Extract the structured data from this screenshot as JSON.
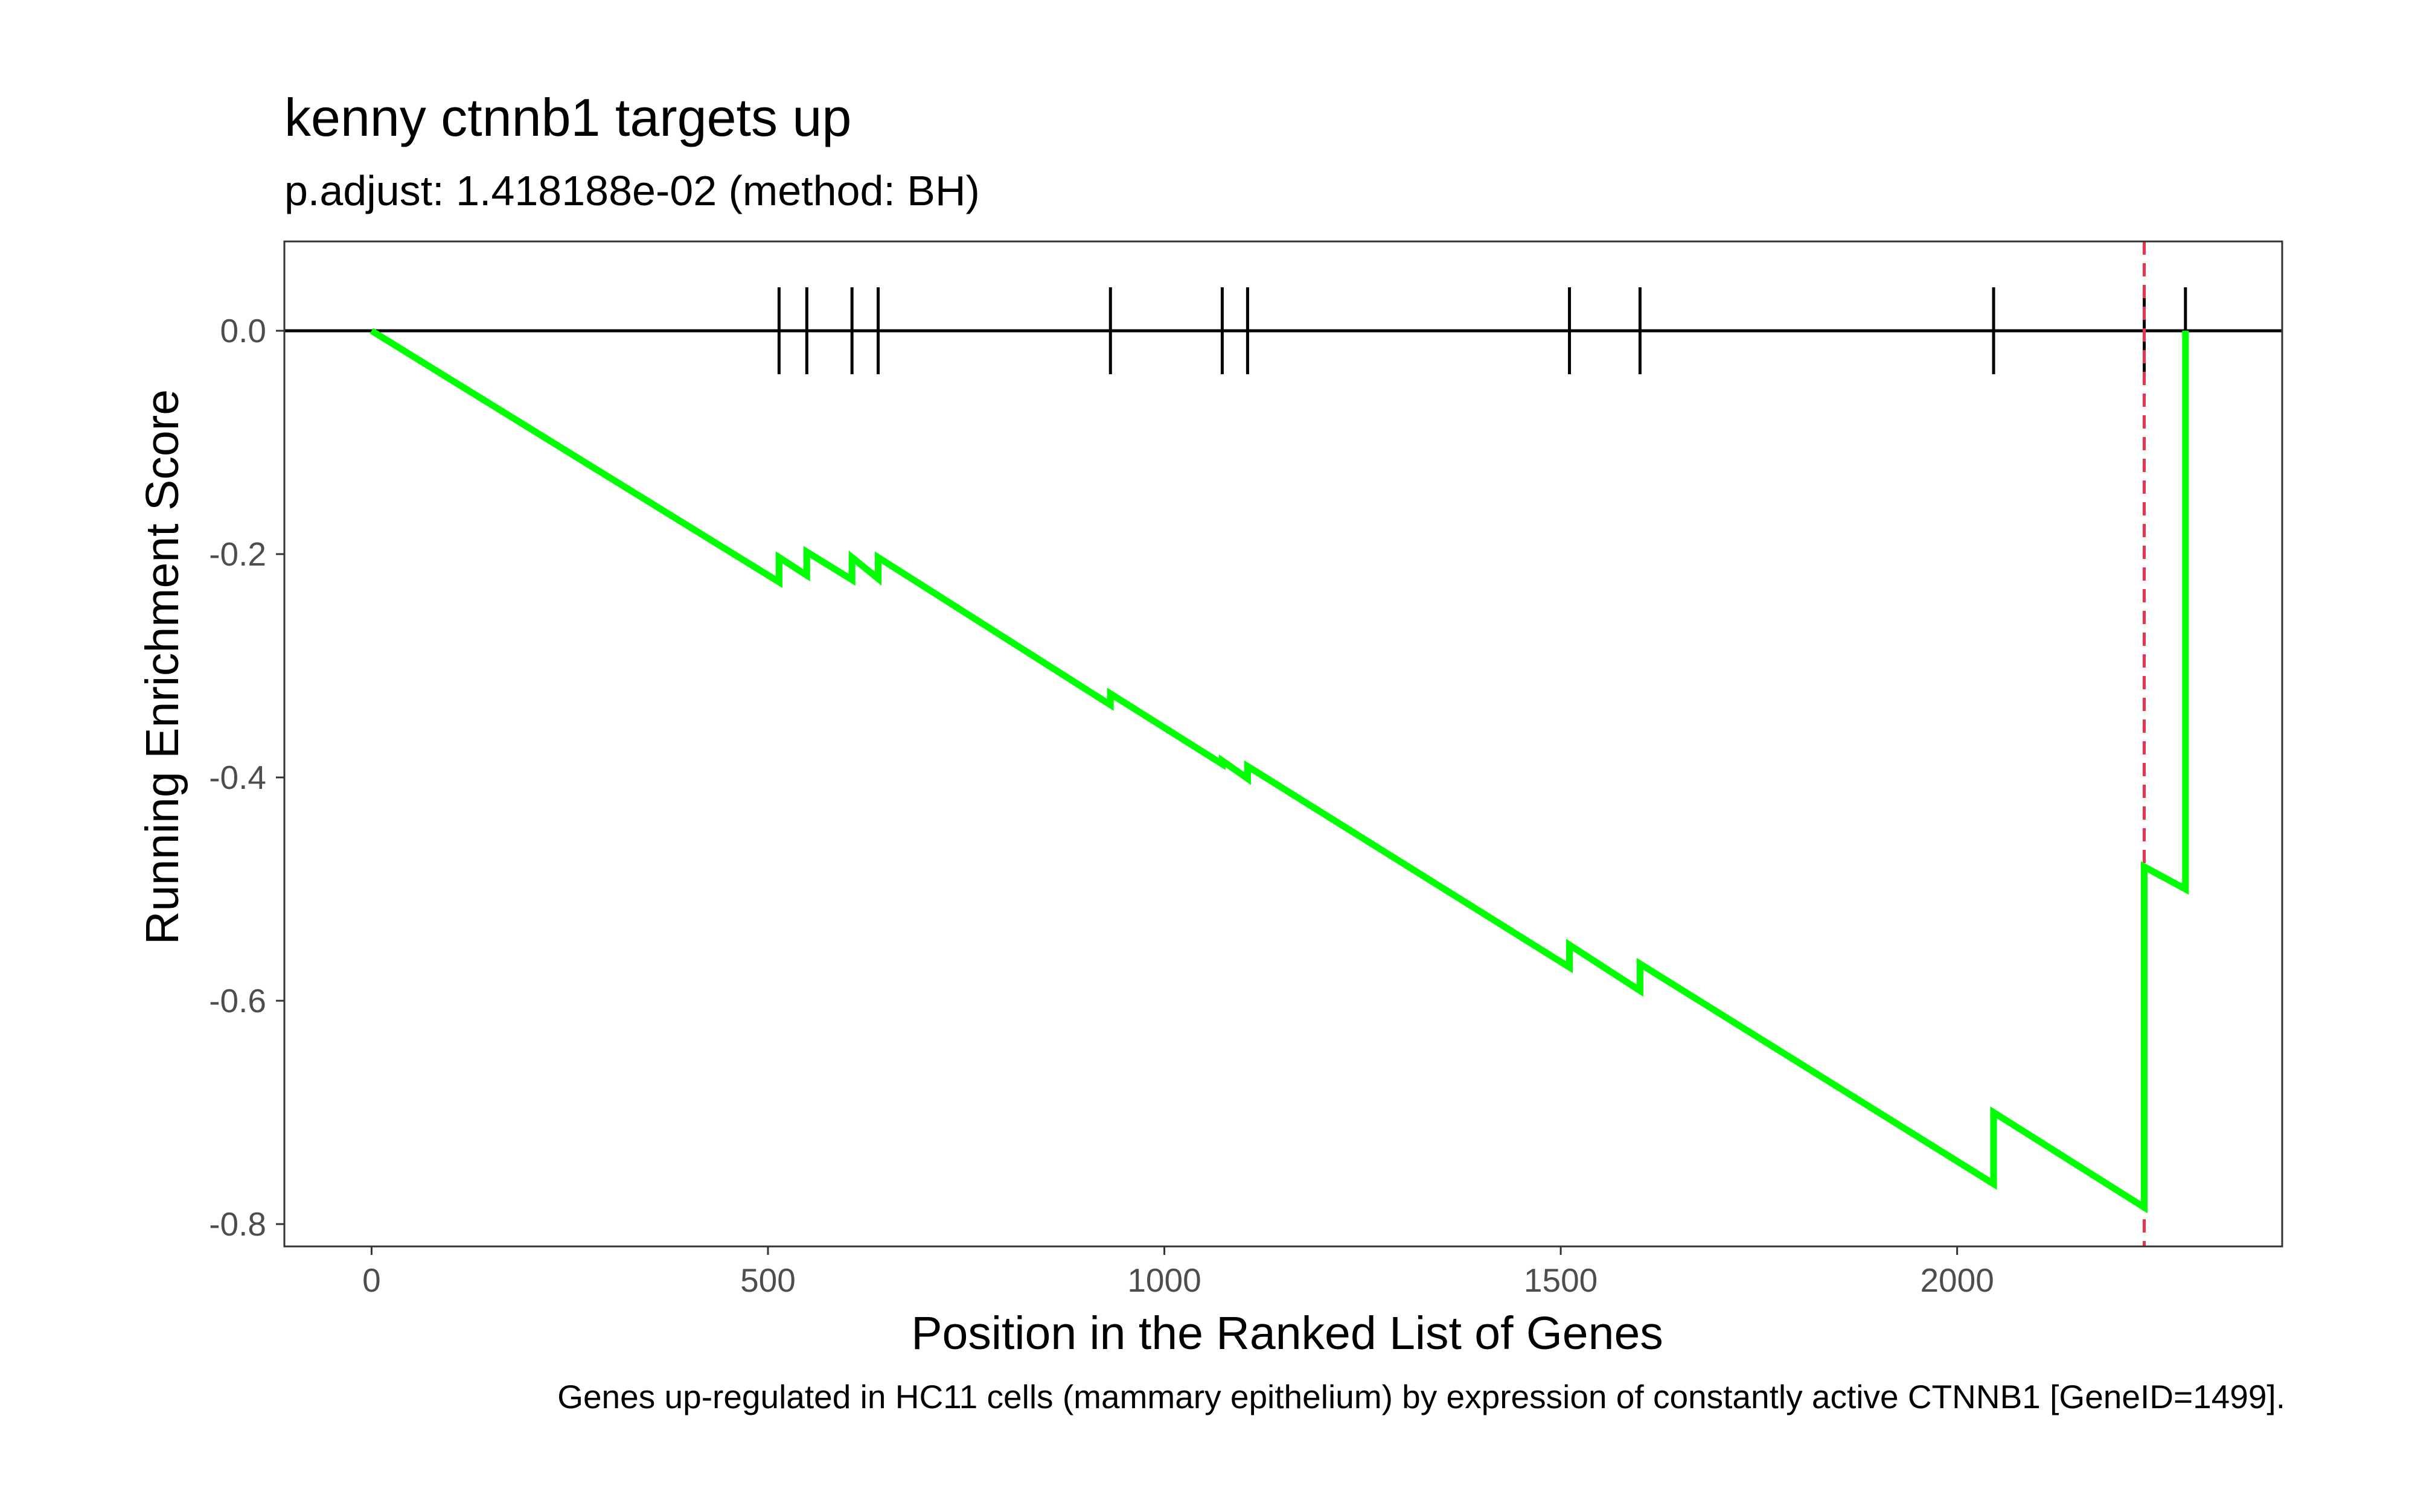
{
  "chart_data": {
    "type": "line",
    "title": "kenny ctnnb1 targets up",
    "subtitle": "p.adjust: 1.418188e-02 (method: BH)",
    "xlabel": "Position in the Ranked List of Genes",
    "ylabel": "Running Enrichment Score",
    "caption": "Genes up-regulated in HC11 cells (mammary epithelium) by expression of constantly active CTNNB1 [GeneID=1499].",
    "xlim": [
      -110,
      2410
    ],
    "ylim": [
      -0.82,
      0.08
    ],
    "x_ticks": [
      0,
      500,
      1000,
      1500,
      2000
    ],
    "x_tick_labels": [
      "0",
      "500",
      "1000",
      "1500",
      "2000"
    ],
    "y_ticks": [
      0.0,
      -0.2,
      -0.4,
      -0.6,
      -0.8
    ],
    "y_tick_labels": [
      "0.0",
      "-0.2",
      "-0.4",
      "-0.6",
      "-0.8"
    ],
    "grid": false,
    "series": [
      {
        "color": "#00ff00",
        "x": [
          0,
          514,
          514,
          549,
          549,
          606,
          606,
          639,
          639,
          932,
          932,
          1073,
          1073,
          1105,
          1105,
          1511,
          1511,
          1600,
          1600,
          2046,
          2046,
          2236,
          2236,
          2288,
          2288
        ],
        "y": [
          0.0,
          -0.225,
          -0.203,
          -0.219,
          -0.198,
          -0.223,
          -0.203,
          -0.222,
          -0.203,
          -0.335,
          -0.325,
          -0.388,
          -0.385,
          -0.401,
          -0.39,
          -0.57,
          -0.55,
          -0.591,
          -0.567,
          -0.764,
          -0.7,
          -0.785,
          -0.48,
          -0.5,
          0.0
        ]
      }
    ],
    "hit_positions": [
      514,
      549,
      606,
      639,
      932,
      1073,
      1105,
      1511,
      1600,
      2046,
      2236,
      2288
    ],
    "baseline": 0.0,
    "max_deviation_position": 2236,
    "colors": {
      "running_score": "#00ff00",
      "max_deviation_line": "#e8344e",
      "hit_marks": "#000000",
      "baseline": "#000000",
      "panel_border": "#333333",
      "tick_label": "#4d4d4d"
    }
  }
}
